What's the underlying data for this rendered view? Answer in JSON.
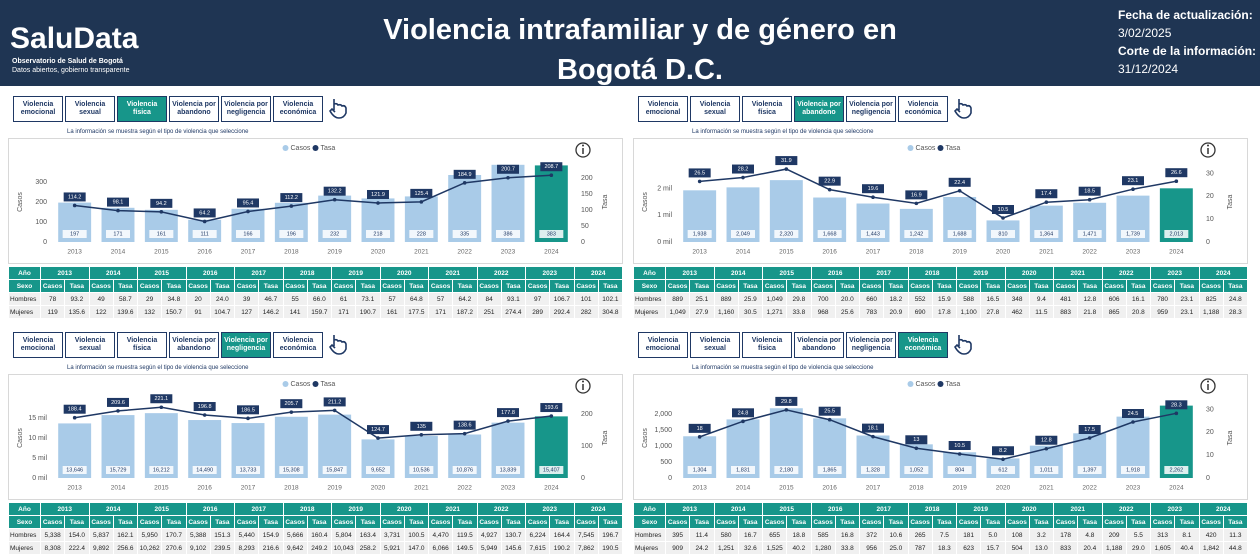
{
  "header": {
    "logo": "SaluData",
    "logo_sub1": "Observatorio de Salud de Bogotá",
    "logo_sub2": "Datos abiertos, gobierno transparente",
    "title": "Violencia intrafamiliar y de género en Bogotá D.C.",
    "update_label": "Fecha de actualización:",
    "update_date": "3/02/2025",
    "cutoff_label": "Corte de la información:",
    "cutoff_date": "31/12/2024"
  },
  "chart_data": [
    {
      "type": "combo",
      "tabs": [
        "Violencia emocional",
        "Violencia sexual",
        "Violencia física",
        "Violencia por abandono",
        "Violencia por negligencia",
        "Violencia económica"
      ],
      "selected_tab": 2,
      "note": "La información se muestra según el tipo de violencia que seleccione",
      "ylabel": "Casos",
      "y2label": "Tasa",
      "categories": [
        "2013",
        "2014",
        "2015",
        "2016",
        "2017",
        "2018",
        "2019",
        "2020",
        "2021",
        "2022",
        "2023",
        "2024"
      ],
      "ylim": [
        0,
        400
      ],
      "yticks": [
        0,
        100,
        200,
        300
      ],
      "y2lim": [
        0,
        250
      ],
      "y2ticks": [
        0,
        50,
        100,
        150,
        200
      ],
      "series": [
        {
          "name": "Casos",
          "color": "#a9cbe8",
          "highlight_color": "#17968a",
          "values": [
            197,
            171,
            161,
            111,
            166,
            196,
            232,
            218,
            228,
            335,
            386,
            383
          ]
        },
        {
          "name": "Tasa",
          "color": "#1f3864",
          "axis": "y2",
          "values": [
            114.2,
            98.1,
            94.2,
            64.2,
            95.4,
            112.2,
            132.2,
            121.9,
            125.4,
            184.9,
            200.7,
            208.7
          ]
        }
      ],
      "table": {
        "year_label": "Año",
        "sex_label": "Sexo",
        "casos_label": "Casos",
        "tasa_label": "Tasa",
        "rows": [
          {
            "label": "Hombres",
            "cells": [
              "78",
              "93.2",
              "49",
              "58.7",
              "29",
              "34.8",
              "20",
              "24.0",
              "39",
              "46.7",
              "55",
              "66.0",
              "61",
              "73.1",
              "57",
              "64.8",
              "57",
              "64.2",
              "84",
              "93.1",
              "97",
              "106.7",
              "101",
              "102.1"
            ]
          },
          {
            "label": "Mujeres",
            "cells": [
              "119",
              "135.6",
              "122",
              "139.6",
              "132",
              "150.7",
              "91",
              "104.7",
              "127",
              "146.2",
              "141",
              "159.7",
              "171",
              "190.7",
              "161",
              "177.5",
              "171",
              "187.2",
              "251",
              "274.4",
              "289",
              "292.4",
              "282",
              "304.8"
            ]
          }
        ]
      }
    },
    {
      "type": "combo",
      "tabs": [
        "Violencia emocional",
        "Violencia sexual",
        "Violencia física",
        "Violencia por abandono",
        "Violencia por negligencia",
        "Violencia económica"
      ],
      "selected_tab": 3,
      "note": "La información se muestra según el tipo de violencia que seleccione",
      "ylabel": "Casos",
      "y2label": "Tasa",
      "categories": [
        "2013",
        "2014",
        "2015",
        "2016",
        "2017",
        "2018",
        "2019",
        "2020",
        "2021",
        "2022",
        "2023",
        "2024"
      ],
      "ylim": [
        0,
        3000
      ],
      "yticks": [
        {
          "value": 0,
          "label": "0 mil"
        },
        {
          "value": 1000,
          "label": "1 mil"
        },
        {
          "value": 2000,
          "label": "2 mil"
        }
      ],
      "y2lim": [
        0,
        35
      ],
      "y2ticks": [
        0,
        10,
        20,
        30
      ],
      "series": [
        {
          "name": "Casos",
          "color": "#a9cbe8",
          "highlight_color": "#17968a",
          "values": [
            1938,
            2049,
            2320,
            1668,
            1443,
            1242,
            1688,
            810,
            1364,
            1471,
            1739,
            2013
          ],
          "value_labels": [
            "1,938",
            "2,049",
            "2,320",
            "1,668",
            "1,443",
            "1,242",
            "1,688",
            "810",
            "1,364",
            "1,471",
            "1,739",
            "2,013"
          ]
        },
        {
          "name": "Tasa",
          "color": "#1f3864",
          "axis": "y2",
          "values": [
            26.5,
            28.2,
            31.9,
            22.9,
            19.6,
            16.9,
            22.4,
            10.5,
            17.4,
            18.5,
            23.1,
            26.6
          ]
        }
      ],
      "table": {
        "year_label": "Año",
        "sex_label": "Sexo",
        "casos_label": "Casos",
        "tasa_label": "Tasa",
        "rows": [
          {
            "label": "Hombres",
            "cells": [
              "889",
              "25.1",
              "889",
              "25.9",
              "1,049",
              "29.8",
              "700",
              "20.0",
              "660",
              "18.2",
              "552",
              "15.9",
              "588",
              "16.5",
              "348",
              "9.4",
              "481",
              "12.8",
              "606",
              "16.1",
              "780",
              "23.1",
              "825",
              "24.8"
            ]
          },
          {
            "label": "Mujeres",
            "cells": [
              "1,049",
              "27.9",
              "1,160",
              "30.5",
              "1,271",
              "33.8",
              "968",
              "25.6",
              "783",
              "20.9",
              "690",
              "17.8",
              "1,100",
              "27.8",
              "462",
              "11.5",
              "883",
              "21.8",
              "865",
              "20.8",
              "959",
              "23.1",
              "1,188",
              "28.3"
            ]
          }
        ]
      }
    },
    {
      "type": "combo",
      "tabs": [
        "Violencia emocional",
        "Violencia sexual",
        "Violencia física",
        "Violencia por abandono",
        "Violencia por negligencia",
        "Violencia económica"
      ],
      "selected_tab": 4,
      "note": "La información se muestra según el tipo de violencia que seleccione",
      "ylabel": "Casos",
      "y2label": "Tasa",
      "categories": [
        "2013",
        "2014",
        "2015",
        "2016",
        "2017",
        "2018",
        "2019",
        "2020",
        "2021",
        "2022",
        "2023",
        "2024"
      ],
      "ylim": [
        0,
        20000
      ],
      "yticks": [
        {
          "value": 0,
          "label": "0 mil"
        },
        {
          "value": 5000,
          "label": "5 mil"
        },
        {
          "value": 10000,
          "label": "10 mil"
        },
        {
          "value": 15000,
          "label": "15 mil"
        }
      ],
      "y2lim": [
        0,
        250
      ],
      "y2ticks": [
        0,
        100,
        200
      ],
      "series": [
        {
          "name": "Casos",
          "color": "#a9cbe8",
          "highlight_color": "#17968a",
          "values": [
            13646,
            15729,
            16212,
            14490,
            13733,
            15308,
            15847,
            9652,
            10536,
            10876,
            13839,
            15407
          ],
          "value_labels": [
            "13,646",
            "15,729",
            "16,212",
            "14,490",
            "13,733",
            "15,308",
            "15,847",
            "9,652",
            "10,536",
            "10,876",
            "13,839",
            "15,407"
          ]
        },
        {
          "name": "Tasa",
          "color": "#1f3864",
          "axis": "y2",
          "values": [
            188.4,
            209.6,
            221.1,
            196.8,
            186.5,
            205.7,
            211.2,
            124.7,
            135.0,
            138.6,
            177.8,
            193.6
          ]
        }
      ],
      "table": {
        "year_label": "Año",
        "sex_label": "Sexo",
        "casos_label": "Casos",
        "tasa_label": "Tasa",
        "rows": [
          {
            "label": "Hombres",
            "cells": [
              "5,338",
              "154.0",
              "5,837",
              "162.1",
              "5,950",
              "170.7",
              "5,388",
              "151.3",
              "5,440",
              "154.9",
              "5,666",
              "160.4",
              "5,804",
              "163.4",
              "3,731",
              "100.5",
              "4,470",
              "119.5",
              "4,927",
              "130.7",
              "6,224",
              "164.4",
              "7,545",
              "196.7"
            ]
          },
          {
            "label": "Mujeres",
            "cells": [
              "8,308",
              "222.4",
              "9,892",
              "256.6",
              "10,262",
              "270.6",
              "9,102",
              "239.5",
              "8,293",
              "216.6",
              "9,642",
              "249.2",
              "10,043",
              "258.2",
              "5,921",
              "147.0",
              "6,066",
              "149.5",
              "5,949",
              "145.6",
              "7,615",
              "190.2",
              "7,862",
              "190.5"
            ]
          }
        ]
      }
    },
    {
      "type": "combo",
      "tabs": [
        "Violencia emocional",
        "Violencia sexual",
        "Violencia física",
        "Violencia por abandono",
        "Violencia por negligencia",
        "Violencia económica"
      ],
      "selected_tab": 5,
      "note": "La información se muestra según el tipo de violencia que seleccione",
      "ylabel": "Casos",
      "y2label": "Tasa",
      "categories": [
        "2013",
        "2014",
        "2015",
        "2016",
        "2017",
        "2018",
        "2019",
        "2020",
        "2021",
        "2022",
        "2023",
        "2024"
      ],
      "ylim": [
        0,
        2500
      ],
      "yticks": [
        0,
        500,
        {
          "value": 1000,
          "label": "1,000"
        },
        {
          "value": 1500,
          "label": "1,500"
        },
        {
          "value": 2000,
          "label": "2,000"
        }
      ],
      "y2lim": [
        0,
        35
      ],
      "y2ticks": [
        0,
        10,
        20,
        30
      ],
      "series": [
        {
          "name": "Casos",
          "color": "#a9cbe8",
          "highlight_color": "#17968a",
          "values": [
            1304,
            1831,
            2180,
            1865,
            1328,
            1052,
            804,
            612,
            1011,
            1397,
            1918,
            2262
          ],
          "value_labels": [
            "1,304",
            "1,831",
            "2,180",
            "1,865",
            "1,328",
            "1,052",
            "804",
            "612",
            "1,011",
            "1,397",
            "1,918",
            "2,262"
          ]
        },
        {
          "name": "Tasa",
          "color": "#1f3864",
          "axis": "y2",
          "values": [
            18.0,
            24.8,
            29.8,
            25.5,
            18.1,
            13.0,
            10.5,
            8.2,
            12.8,
            17.5,
            24.5,
            28.3
          ]
        }
      ],
      "table": {
        "year_label": "Año",
        "sex_label": "Sexo",
        "casos_label": "Casos",
        "tasa_label": "Tasa",
        "rows": [
          {
            "label": "Hombres",
            "cells": [
              "395",
              "11.4",
              "580",
              "16.7",
              "655",
              "18.8",
              "585",
              "16.8",
              "372",
              "10.6",
              "265",
              "7.5",
              "181",
              "5.0",
              "108",
              "3.2",
              "178",
              "4.8",
              "209",
              "5.5",
              "313",
              "8.1",
              "420",
              "11.3"
            ]
          },
          {
            "label": "Mujeres",
            "cells": [
              "909",
              "24.2",
              "1,251",
              "32.6",
              "1,525",
              "40.2",
              "1,280",
              "33.8",
              "956",
              "25.0",
              "787",
              "18.3",
              "623",
              "15.7",
              "504",
              "13.0",
              "833",
              "20.4",
              "1,188",
              "29.0",
              "1,605",
              "40.4",
              "1,842",
              "44.8"
            ]
          }
        ]
      }
    }
  ]
}
